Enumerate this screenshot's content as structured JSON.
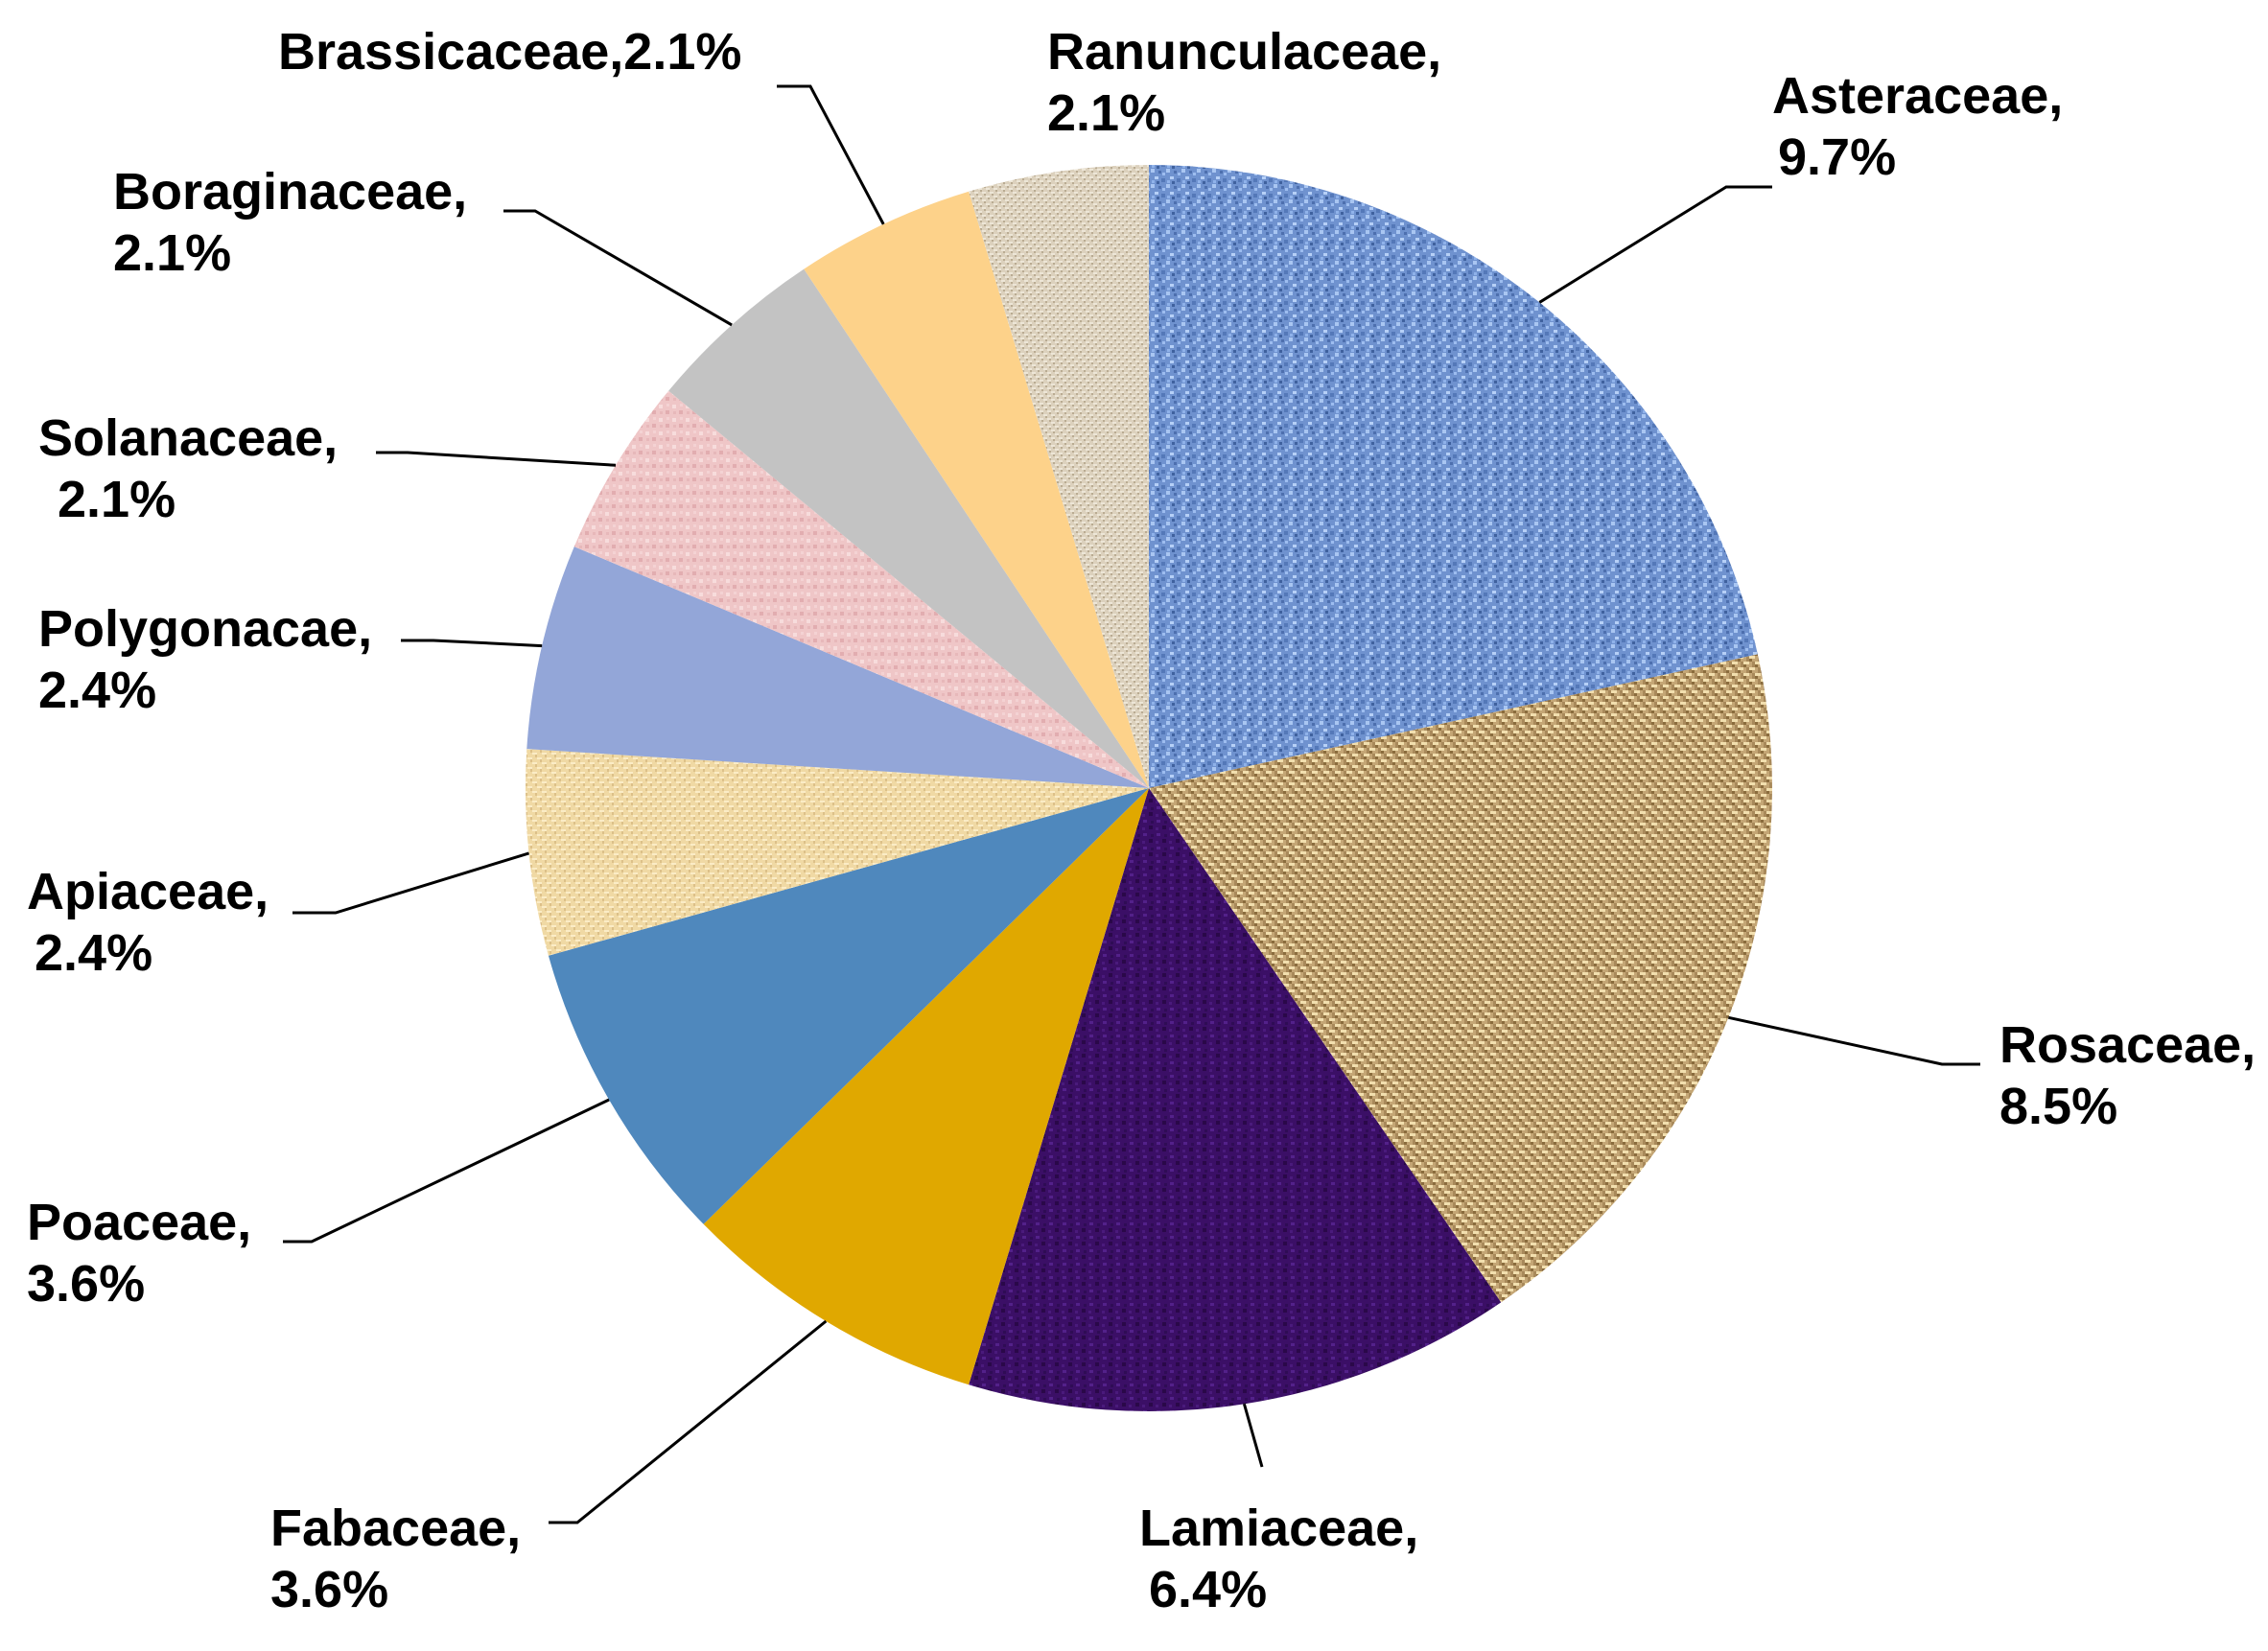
{
  "chart_data": {
    "type": "pie",
    "start_angle_deg": 0,
    "direction": "clockwise",
    "legend": "none",
    "slices": [
      {
        "name": "Asteraceae",
        "value": 9.7,
        "label_line1": "Asteraceae,",
        "label_line2": "9.7%",
        "color": "#7d9fd6",
        "pattern": "blue-texture"
      },
      {
        "name": "Rosaceae",
        "value": 8.5,
        "label_line1": "Rosaceae,",
        "label_line2": "8.5%",
        "color": "#c2a574",
        "pattern": "tan-weave"
      },
      {
        "name": "Lamiaceae",
        "value": 6.4,
        "label_line1": "Lamiaceae,",
        "label_line2": "6.4%",
        "color": "#3e1068",
        "pattern": "purple-texture"
      },
      {
        "name": "Fabaceae",
        "value": 3.6,
        "label_line1": "Fabaceae,",
        "label_line2": "3.6%",
        "color": "#e0a800",
        "pattern": "solid"
      },
      {
        "name": "Poaceae",
        "value": 3.6,
        "label_line1": "Poaceae,",
        "label_line2": "3.6%",
        "color": "#4f88bd",
        "pattern": "solid"
      },
      {
        "name": "Apiaceae",
        "value": 2.4,
        "label_line1": "Apiaceae,",
        "label_line2": "2.4%",
        "color": "#f1dba8",
        "pattern": "light-canvas"
      },
      {
        "name": "Polygonacae",
        "value": 2.4,
        "label_line1": "Polygonacae,",
        "label_line2": "2.4%",
        "color": "#93a6d8",
        "pattern": "solid"
      },
      {
        "name": "Solanaceae",
        "value": 2.1,
        "label_line1": "Solanaceae,",
        "label_line2": "2.1%",
        "color": "#efc7c8",
        "pattern": "pink-texture"
      },
      {
        "name": "Boraginaceae",
        "value": 2.1,
        "label_line1": "Boraginaceae,",
        "label_line2": "2.1%",
        "color": "#c3c3c3",
        "pattern": "solid"
      },
      {
        "name": "Brassicaceae",
        "value": 2.1,
        "label_line1": "Brassicaceae,2.1%",
        "label_line2": "",
        "color": "#fdd28a",
        "pattern": "solid"
      },
      {
        "name": "Ranunculaceae",
        "value": 2.1,
        "label_line1": "Ranunculaceae,",
        "label_line2": "2.1%",
        "color": "#ddd2bf",
        "pattern": "beige-canvas"
      }
    ]
  }
}
